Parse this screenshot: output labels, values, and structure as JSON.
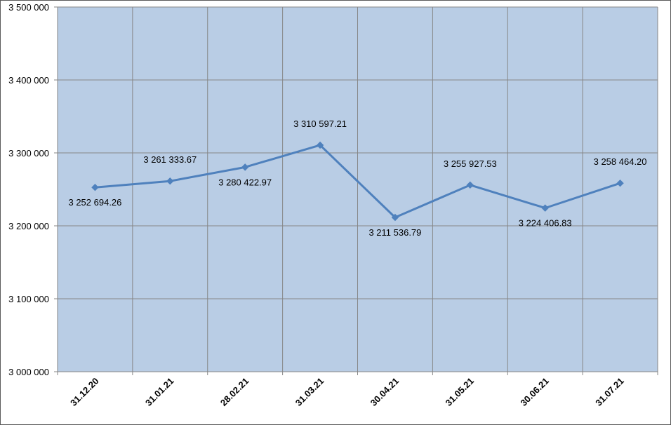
{
  "chart_data": {
    "type": "line",
    "categories": [
      "31.12.20",
      "31.01.21",
      "28.02.21",
      "31.03.21",
      "30.04.21",
      "31.05.21",
      "30.06.21",
      "31.07.21"
    ],
    "series": [
      {
        "values": [
          3252694.26,
          3261333.67,
          3280422.97,
          3310597.21,
          3211536.79,
          3255927.53,
          3224406.83,
          3258464.2
        ],
        "data_labels": [
          "3 252 694.26",
          "3 261 333.67",
          "3 280 422.97",
          "3 310 597.21",
          "3 211 536.79",
          "3 255 927.53",
          "3 224 406.83",
          "3 258 464.20"
        ],
        "color": "#4f81bd",
        "marker": "diamond"
      }
    ],
    "ylim": [
      3000000,
      3500000
    ],
    "yticks": [
      3000000,
      3100000,
      3200000,
      3300000,
      3400000,
      3500000
    ],
    "ytick_labels": [
      "3 000 000",
      "3 100 000",
      "3 200 000",
      "3 300 000",
      "3 400 000",
      "3 500 000"
    ],
    "title": "",
    "xlabel": "",
    "ylabel": "",
    "grid": true,
    "plot_background": "#b9cde5",
    "gridline_color": "#868686"
  }
}
